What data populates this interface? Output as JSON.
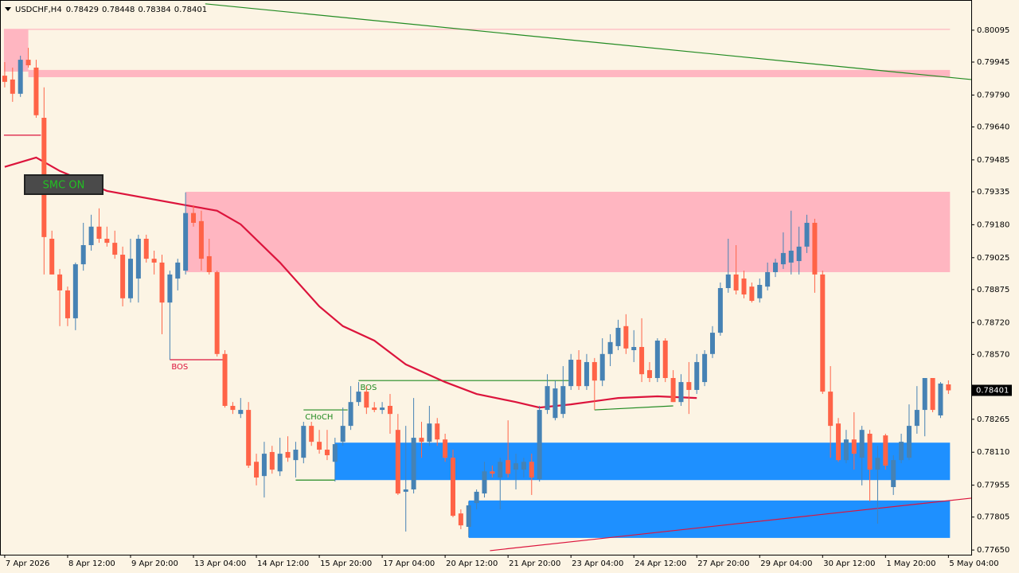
{
  "chart_data": {
    "type": "candlestick",
    "symbol": "USDCHF,H4",
    "button": "SMC ON",
    "colors": {
      "up": "#4682b4",
      "down": "#ff6347"
    },
    "ohlc": [
      [
        0.79881,
        0.79945,
        0.79826,
        0.79852
      ],
      [
        0.79863,
        0.79919,
        0.79758,
        0.79796
      ],
      [
        0.79796,
        0.79975,
        0.79781,
        0.79956
      ],
      [
        0.79956,
        0.80012,
        0.79919,
        0.7993
      ],
      [
        0.79919,
        0.79956,
        0.79683,
        0.79695
      ],
      [
        0.79683,
        0.79826,
        0.78946,
        0.79122
      ],
      [
        0.79114,
        0.79152,
        0.78946,
        0.78946
      ],
      [
        0.78946,
        0.78972,
        0.78703,
        0.78871
      ],
      [
        0.78871,
        0.78889,
        0.78703,
        0.7874
      ],
      [
        0.7874,
        0.79002,
        0.78684,
        0.78994
      ],
      [
        0.78994,
        0.79189,
        0.78964,
        0.79084
      ],
      [
        0.79084,
        0.79227,
        0.79058,
        0.79171
      ],
      [
        0.79171,
        0.79257,
        0.79095,
        0.79114
      ],
      [
        0.79114,
        0.79171,
        0.79077,
        0.79095
      ],
      [
        0.79095,
        0.79152,
        0.7902,
        0.79039
      ],
      [
        0.79039,
        0.79077,
        0.78796,
        0.78834
      ],
      [
        0.78834,
        0.79114,
        0.78814,
        0.7902
      ],
      [
        0.78927,
        0.79133,
        0.78814,
        0.79114
      ],
      [
        0.79114,
        0.79133,
        0.79002,
        0.7902
      ],
      [
        0.7902,
        0.79058,
        0.78946,
        0.79002
      ],
      [
        0.79002,
        0.79039,
        0.78665,
        0.78814
      ],
      [
        0.78814,
        0.78964,
        0.78545,
        0.78946
      ],
      [
        0.78927,
        0.7902,
        0.78871,
        0.79002
      ],
      [
        0.78964,
        0.79332,
        0.78946,
        0.79235
      ],
      [
        0.79235,
        0.79272,
        0.79171,
        0.79189
      ],
      [
        0.79197,
        0.79246,
        0.78964,
        0.7902
      ],
      [
        0.79032,
        0.79114,
        0.78946,
        0.78957
      ],
      [
        0.78957,
        0.78964,
        0.7856,
        0.78572
      ],
      [
        0.78572,
        0.7859,
        0.7832,
        0.78328
      ],
      [
        0.78328,
        0.78346,
        0.7829,
        0.78309
      ],
      [
        0.7829,
        0.78365,
        0.78271,
        0.78309
      ],
      [
        0.78309,
        0.78346,
        0.78036,
        0.78047
      ],
      [
        0.78065,
        0.78103,
        0.77954,
        0.77991
      ],
      [
        0.77998,
        0.78159,
        0.77897,
        0.78103
      ],
      [
        0.78111,
        0.7814,
        0.78009,
        0.78028
      ],
      [
        0.7802,
        0.78178,
        0.77998,
        0.78103
      ],
      [
        0.78111,
        0.78185,
        0.78065,
        0.78084
      ],
      [
        0.78073,
        0.78159,
        0.77991,
        0.78122
      ],
      [
        0.78084,
        0.78253,
        0.78058,
        0.78234
      ],
      [
        0.78234,
        0.78253,
        0.7814,
        0.78159
      ],
      [
        0.78159,
        0.78215,
        0.78103,
        0.78122
      ],
      [
        0.78122,
        0.78215,
        0.78073,
        0.78096
      ],
      [
        0.78065,
        0.78178,
        0.77972,
        0.78148
      ],
      [
        0.78159,
        0.7832,
        0.7814,
        0.78234
      ],
      [
        0.78234,
        0.78421,
        0.78215,
        0.78346
      ],
      [
        0.78346,
        0.7844,
        0.78328,
        0.78395
      ],
      [
        0.78395,
        0.78421,
        0.7829,
        0.7832
      ],
      [
        0.7832,
        0.78346,
        0.78298,
        0.78309
      ],
      [
        0.78309,
        0.78346,
        0.7829,
        0.7832
      ],
      [
        0.78328,
        0.78384,
        0.78197,
        0.7829
      ],
      [
        0.78215,
        0.7829,
        0.77909,
        0.77916
      ],
      [
        0.77924,
        0.78234,
        0.77737,
        0.77935
      ],
      [
        0.77935,
        0.78365,
        0.77916,
        0.78178
      ],
      [
        0.78178,
        0.78253,
        0.78084,
        0.78159
      ],
      [
        0.78159,
        0.78328,
        0.7814,
        0.78245
      ],
      [
        0.78245,
        0.78271,
        0.7814,
        0.7817
      ],
      [
        0.7817,
        0.78197,
        0.78065,
        0.78084
      ],
      [
        0.78084,
        0.78122,
        0.77804,
        0.77811
      ],
      [
        0.77822,
        0.77841,
        0.77748,
        0.77766
      ],
      [
        0.77759,
        0.77879,
        0.7771,
        0.7786
      ],
      [
        0.77871,
        0.77935,
        0.77841,
        0.77924
      ],
      [
        0.77916,
        0.78065,
        0.77897,
        0.7802
      ],
      [
        0.7802,
        0.78047,
        0.77991,
        0.78009
      ],
      [
        0.77991,
        0.78084,
        0.77841,
        0.78065
      ],
      [
        0.78073,
        0.7826,
        0.77991,
        0.78009
      ],
      [
        0.78028,
        0.78103,
        0.77935,
        0.78058
      ],
      [
        0.78028,
        0.78084,
        0.77991,
        0.78065
      ],
      [
        0.78065,
        0.78103,
        0.77909,
        0.77991
      ],
      [
        0.77984,
        0.78328,
        0.77972,
        0.78309
      ],
      [
        0.78309,
        0.78477,
        0.7829,
        0.78421
      ],
      [
        0.78271,
        0.78447,
        0.7826,
        0.7841
      ],
      [
        0.7829,
        0.78515,
        0.78271,
        0.78421
      ],
      [
        0.78421,
        0.78572,
        0.78403,
        0.78545
      ],
      [
        0.78545,
        0.7859,
        0.78403,
        0.78421
      ],
      [
        0.78421,
        0.78572,
        0.78403,
        0.78534
      ],
      [
        0.78534,
        0.78553,
        0.78309,
        0.78447
      ],
      [
        0.78447,
        0.78646,
        0.78421,
        0.78572
      ],
      [
        0.78572,
        0.78665,
        0.78515,
        0.78628
      ],
      [
        0.78609,
        0.78733,
        0.7859,
        0.78695
      ],
      [
        0.78703,
        0.78759,
        0.78572,
        0.78598
      ],
      [
        0.7859,
        0.78684,
        0.78534,
        0.78605
      ],
      [
        0.78605,
        0.7874,
        0.7844,
        0.78477
      ],
      [
        0.78496,
        0.78534,
        0.7844,
        0.78459
      ],
      [
        0.78459,
        0.78646,
        0.7844,
        0.78635
      ],
      [
        0.78635,
        0.78646,
        0.7844,
        0.78459
      ],
      [
        0.78459,
        0.78496,
        0.78346,
        0.78346
      ],
      [
        0.78346,
        0.78477,
        0.78328,
        0.7844
      ],
      [
        0.7844,
        0.78534,
        0.7829,
        0.78403
      ],
      [
        0.78403,
        0.78572,
        0.78384,
        0.78534
      ],
      [
        0.7844,
        0.7859,
        0.78421,
        0.78572
      ],
      [
        0.78572,
        0.78703,
        0.78553,
        0.78672
      ],
      [
        0.78672,
        0.78908,
        0.78658,
        0.78882
      ],
      [
        0.78882,
        0.79114,
        0.7886,
        0.78946
      ],
      [
        0.78946,
        0.79084,
        0.78852,
        0.78871
      ],
      [
        0.78927,
        0.78964,
        0.78834,
        0.78852
      ],
      [
        0.78889,
        0.78908,
        0.78814,
        0.78822
      ],
      [
        0.78834,
        0.78927,
        0.78814,
        0.78897
      ],
      [
        0.78889,
        0.79002,
        0.78871,
        0.78957
      ],
      [
        0.78957,
        0.7902,
        0.78934,
        0.79002
      ],
      [
        0.78994,
        0.79144,
        0.78972,
        0.79047
      ],
      [
        0.79002,
        0.79246,
        0.78946,
        0.79058
      ],
      [
        0.79009,
        0.79171,
        0.78946,
        0.79077
      ],
      [
        0.79077,
        0.79227,
        0.79047,
        0.79189
      ],
      [
        0.79189,
        0.79208,
        0.7886,
        0.78946
      ],
      [
        0.78946,
        0.78964,
        0.78384,
        0.78395
      ],
      [
        0.78395,
        0.78515,
        0.78084,
        0.78234
      ],
      [
        0.78245,
        0.78271,
        0.78065,
        0.78073
      ],
      [
        0.78073,
        0.78215,
        0.78058,
        0.7817
      ],
      [
        0.7817,
        0.78298,
        0.78028,
        0.78103
      ],
      [
        0.78084,
        0.78234,
        0.77954,
        0.78215
      ],
      [
        0.78197,
        0.78215,
        0.77879,
        0.78028
      ],
      [
        0.78028,
        0.7814,
        0.77774,
        0.78084
      ],
      [
        0.78189,
        0.78197,
        0.78028,
        0.78047
      ],
      [
        0.77946,
        0.78096,
        0.77909,
        0.78073
      ],
      [
        0.78073,
        0.78197,
        0.78058,
        0.78159
      ],
      [
        0.78084,
        0.78335,
        0.78073,
        0.78234
      ],
      [
        0.78234,
        0.78421,
        0.78197,
        0.78309
      ],
      [
        0.78309,
        0.78459,
        0.78185,
        0.78459
      ],
      [
        0.78459,
        0.78459,
        0.78298,
        0.78309
      ],
      [
        0.78283,
        0.7844,
        0.78271,
        0.78433
      ],
      [
        0.78429,
        0.78448,
        0.78384,
        0.78401
      ]
    ],
    "xlim": [
      -0.6,
      122.9
    ],
    "xticks": [
      {
        "value": 0,
        "label": "7 Apr 2026"
      },
      {
        "value": 8,
        "label": "8 Apr 12:00"
      },
      {
        "value": 16,
        "label": "9 Apr 20:00"
      },
      {
        "value": 24,
        "label": "13 Apr 04:00"
      },
      {
        "value": 32,
        "label": "14 Apr 12:00"
      },
      {
        "value": 40,
        "label": "15 Apr 20:00"
      },
      {
        "value": 48,
        "label": "17 Apr 04:00"
      },
      {
        "value": 56,
        "label": "20 Apr 12:00"
      },
      {
        "value": 64,
        "label": "21 Apr 20:00"
      },
      {
        "value": 72,
        "label": "23 Apr 04:00"
      },
      {
        "value": 80,
        "label": "24 Apr 12:00"
      },
      {
        "value": 88,
        "label": "27 Apr 20:00"
      },
      {
        "value": 96,
        "label": "29 Apr 04:00"
      },
      {
        "value": 104,
        "label": "30 Apr 12:00"
      },
      {
        "value": 112,
        "label": "1 May 20:00"
      },
      {
        "value": 120,
        "label": "5 May 04:00"
      }
    ],
    "ylim": [
      0.77628,
      0.80237
    ],
    "yticks": [
      0.80095,
      0.79945,
      {
        "value": 0.7979,
        "label": "0.79790"
      },
      {
        "value": 0.7964,
        "label": "0.79640"
      },
      0.79485,
      0.79335,
      {
        "value": 0.7918,
        "label": "0.79180"
      },
      0.79025,
      0.78875,
      {
        "value": 0.7872,
        "label": "0.78720"
      },
      {
        "value": 0.7857,
        "label": "0.78570"
      },
      0.78265,
      {
        "value": 0.7811,
        "label": "0.78110"
      },
      0.77955,
      0.77805,
      {
        "value": 0.7765,
        "label": "0.77650"
      }
    ],
    "ma": {
      "color": "#dc143c",
      "x": [
        0,
        4,
        7,
        13,
        23,
        27,
        30,
        35,
        40,
        43,
        47,
        51,
        56,
        60,
        65,
        68,
        72,
        78,
        83,
        88
      ],
      "values": [
        0.79452,
        0.79496,
        0.79433,
        0.79339,
        0.79272,
        0.79246,
        0.79182,
        0.79002,
        0.78796,
        0.78703,
        0.78635,
        0.78523,
        0.7844,
        0.78384,
        0.78346,
        0.7832,
        0.78335,
        0.78365,
        0.78373,
        0.78365
      ]
    },
    "zones": [
      {
        "color": "#ffb6c1",
        "x": [
          -0.1,
          3.0
        ],
        "y": [
          0.80099,
          0.799
        ]
      },
      {
        "color": "#ffb6c1",
        "x": [
          3.0,
          120.2
        ],
        "y": [
          0.79908,
          0.79874
        ]
      },
      {
        "color": "#ffb6c1",
        "x": [
          23.0,
          120.2
        ],
        "y": [
          0.79335,
          0.78957
        ]
      },
      {
        "color": "#1e90ff",
        "x": [
          42.0,
          120.2
        ],
        "y": [
          0.78155,
          0.77979
        ]
      },
      {
        "color": "#1e90ff",
        "x": [
          59.0,
          120.2
        ],
        "y": [
          0.77883,
          0.77707
        ]
      }
    ],
    "lines": [
      {
        "color": "#ffb6c1",
        "x": [
          -0.1,
          120.2
        ],
        "y": [
          0.80099,
          0.80099
        ]
      },
      {
        "color": "#228b22",
        "x": [
          25.5,
          122.9
        ],
        "y": [
          0.80219,
          0.79863
        ]
      },
      {
        "color": "#dc143c",
        "x": [
          61.7,
          122.9
        ],
        "y": [
          0.77647,
          0.77894
        ]
      },
      {
        "color": "#dc143c",
        "x": [
          -0.1,
          4.6
        ],
        "y": [
          0.79601,
          0.79601
        ]
      },
      {
        "color": "#dc143c",
        "x": [
          21.0,
          28.0
        ],
        "y": [
          0.78545,
          0.78545
        ],
        "label": "BOS"
      },
      {
        "color": "#228b22",
        "x": [
          38.0,
          43.6
        ],
        "y": [
          0.78309,
          0.78309
        ],
        "label": "CHoCH"
      },
      {
        "color": "#228b22",
        "x": [
          37.0,
          42.0
        ],
        "y": [
          0.77979,
          0.77979
        ]
      },
      {
        "color": "#228b22",
        "x": [
          45.0,
          72.0
        ],
        "y": [
          0.78447,
          0.78447
        ],
        "label": "BOS"
      },
      {
        "color": "#228b22",
        "x": [
          75.0,
          85.0
        ],
        "y": [
          0.78309,
          0.78328
        ]
      }
    ]
  }
}
